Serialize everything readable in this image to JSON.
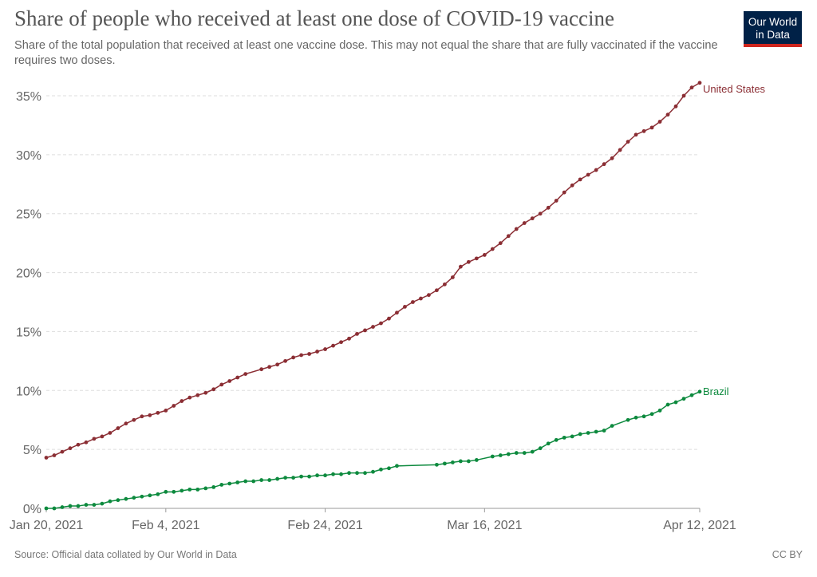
{
  "header": {
    "title": "Share of people who received at least one dose of COVID-19 vaccine",
    "subtitle": "Share of the total population that received at least one vaccine dose. This may not equal the share that are fully vaccinated if the vaccine requires two doses."
  },
  "logo": {
    "line1": "Our World",
    "line2": "in Data"
  },
  "footer": {
    "source": "Source: Official data collated by Our World in Data",
    "license": "CC BY"
  },
  "colors": {
    "us": "#8b2e34",
    "brazil": "#0d8a3e",
    "grid": "#dddddd",
    "axis": "#666666"
  },
  "chart_data": {
    "type": "line",
    "title": "Share of people who received at least one dose of COVID-19 vaccine",
    "x_start": "2021-01-20",
    "x_end": "2021-04-12",
    "xticks": [
      "Jan 20, 2021",
      "Feb 4, 2021",
      "Feb 24, 2021",
      "Mar 16, 2021",
      "Apr 12, 2021"
    ],
    "xtick_dates": [
      "2021-01-20",
      "2021-02-04",
      "2021-02-24",
      "2021-03-16",
      "2021-04-12"
    ],
    "yticks": [
      "0%",
      "5%",
      "10%",
      "15%",
      "20%",
      "25%",
      "30%",
      "35%"
    ],
    "ylim": [
      0,
      35
    ],
    "grid": true,
    "series": [
      {
        "name": "United States",
        "color": "#8b2e34",
        "points": [
          [
            "2021-01-20",
            4.3
          ],
          [
            "2021-01-21",
            4.5
          ],
          [
            "2021-01-22",
            4.8
          ],
          [
            "2021-01-23",
            5.1
          ],
          [
            "2021-01-24",
            5.4
          ],
          [
            "2021-01-25",
            5.6
          ],
          [
            "2021-01-26",
            5.9
          ],
          [
            "2021-01-27",
            6.1
          ],
          [
            "2021-01-28",
            6.4
          ],
          [
            "2021-01-29",
            6.8
          ],
          [
            "2021-01-30",
            7.2
          ],
          [
            "2021-01-31",
            7.5
          ],
          [
            "2021-02-01",
            7.8
          ],
          [
            "2021-02-02",
            7.9
          ],
          [
            "2021-02-03",
            8.1
          ],
          [
            "2021-02-04",
            8.3
          ],
          [
            "2021-02-05",
            8.7
          ],
          [
            "2021-02-06",
            9.1
          ],
          [
            "2021-02-07",
            9.4
          ],
          [
            "2021-02-08",
            9.6
          ],
          [
            "2021-02-09",
            9.8
          ],
          [
            "2021-02-10",
            10.1
          ],
          [
            "2021-02-11",
            10.5
          ],
          [
            "2021-02-12",
            10.8
          ],
          [
            "2021-02-13",
            11.1
          ],
          [
            "2021-02-14",
            11.4
          ],
          [
            "2021-02-16",
            11.8
          ],
          [
            "2021-02-17",
            12.0
          ],
          [
            "2021-02-18",
            12.2
          ],
          [
            "2021-02-19",
            12.5
          ],
          [
            "2021-02-20",
            12.8
          ],
          [
            "2021-02-21",
            13.0
          ],
          [
            "2021-02-22",
            13.1
          ],
          [
            "2021-02-23",
            13.3
          ],
          [
            "2021-02-24",
            13.5
          ],
          [
            "2021-02-25",
            13.8
          ],
          [
            "2021-02-26",
            14.1
          ],
          [
            "2021-02-27",
            14.4
          ],
          [
            "2021-02-28",
            14.8
          ],
          [
            "2021-03-01",
            15.1
          ],
          [
            "2021-03-02",
            15.4
          ],
          [
            "2021-03-03",
            15.7
          ],
          [
            "2021-03-04",
            16.1
          ],
          [
            "2021-03-05",
            16.6
          ],
          [
            "2021-03-06",
            17.1
          ],
          [
            "2021-03-07",
            17.5
          ],
          [
            "2021-03-08",
            17.8
          ],
          [
            "2021-03-09",
            18.1
          ],
          [
            "2021-03-10",
            18.5
          ],
          [
            "2021-03-11",
            19.0
          ],
          [
            "2021-03-12",
            19.6
          ],
          [
            "2021-03-13",
            20.5
          ],
          [
            "2021-03-14",
            20.9
          ],
          [
            "2021-03-15",
            21.2
          ],
          [
            "2021-03-16",
            21.5
          ],
          [
            "2021-03-17",
            22.0
          ],
          [
            "2021-03-18",
            22.5
          ],
          [
            "2021-03-19",
            23.1
          ],
          [
            "2021-03-20",
            23.7
          ],
          [
            "2021-03-21",
            24.2
          ],
          [
            "2021-03-22",
            24.6
          ],
          [
            "2021-03-23",
            25.0
          ],
          [
            "2021-03-24",
            25.5
          ],
          [
            "2021-03-25",
            26.1
          ],
          [
            "2021-03-26",
            26.8
          ],
          [
            "2021-03-27",
            27.4
          ],
          [
            "2021-03-28",
            27.9
          ],
          [
            "2021-03-29",
            28.3
          ],
          [
            "2021-03-30",
            28.7
          ],
          [
            "2021-03-31",
            29.2
          ],
          [
            "2021-04-01",
            29.7
          ],
          [
            "2021-04-02",
            30.4
          ],
          [
            "2021-04-03",
            31.1
          ],
          [
            "2021-04-04",
            31.7
          ],
          [
            "2021-04-05",
            32.0
          ],
          [
            "2021-04-06",
            32.3
          ],
          [
            "2021-04-07",
            32.8
          ],
          [
            "2021-04-08",
            33.4
          ],
          [
            "2021-04-09",
            34.1
          ],
          [
            "2021-04-10",
            35.0
          ],
          [
            "2021-04-11",
            35.7
          ],
          [
            "2021-04-12",
            36.1
          ]
        ]
      },
      {
        "name": "Brazil",
        "color": "#0d8a3e",
        "points": [
          [
            "2021-01-20",
            0.0
          ],
          [
            "2021-01-21",
            0.0
          ],
          [
            "2021-01-22",
            0.1
          ],
          [
            "2021-01-23",
            0.2
          ],
          [
            "2021-01-24",
            0.2
          ],
          [
            "2021-01-25",
            0.3
          ],
          [
            "2021-01-26",
            0.3
          ],
          [
            "2021-01-27",
            0.4
          ],
          [
            "2021-01-28",
            0.6
          ],
          [
            "2021-01-29",
            0.7
          ],
          [
            "2021-01-30",
            0.8
          ],
          [
            "2021-01-31",
            0.9
          ],
          [
            "2021-02-01",
            1.0
          ],
          [
            "2021-02-02",
            1.1
          ],
          [
            "2021-02-03",
            1.2
          ],
          [
            "2021-02-04",
            1.4
          ],
          [
            "2021-02-05",
            1.4
          ],
          [
            "2021-02-06",
            1.5
          ],
          [
            "2021-02-07",
            1.6
          ],
          [
            "2021-02-08",
            1.6
          ],
          [
            "2021-02-09",
            1.7
          ],
          [
            "2021-02-10",
            1.8
          ],
          [
            "2021-02-11",
            2.0
          ],
          [
            "2021-02-12",
            2.1
          ],
          [
            "2021-02-13",
            2.2
          ],
          [
            "2021-02-14",
            2.3
          ],
          [
            "2021-02-15",
            2.3
          ],
          [
            "2021-02-16",
            2.4
          ],
          [
            "2021-02-17",
            2.4
          ],
          [
            "2021-02-18",
            2.5
          ],
          [
            "2021-02-19",
            2.6
          ],
          [
            "2021-02-20",
            2.6
          ],
          [
            "2021-02-21",
            2.7
          ],
          [
            "2021-02-22",
            2.7
          ],
          [
            "2021-02-23",
            2.8
          ],
          [
            "2021-02-24",
            2.8
          ],
          [
            "2021-02-25",
            2.9
          ],
          [
            "2021-02-26",
            2.9
          ],
          [
            "2021-02-27",
            3.0
          ],
          [
            "2021-02-28",
            3.0
          ],
          [
            "2021-03-01",
            3.0
          ],
          [
            "2021-03-02",
            3.1
          ],
          [
            "2021-03-03",
            3.3
          ],
          [
            "2021-03-04",
            3.4
          ],
          [
            "2021-03-05",
            3.6
          ],
          [
            "2021-03-10",
            3.7
          ],
          [
            "2021-03-11",
            3.8
          ],
          [
            "2021-03-12",
            3.9
          ],
          [
            "2021-03-13",
            4.0
          ],
          [
            "2021-03-14",
            4.0
          ],
          [
            "2021-03-15",
            4.1
          ],
          [
            "2021-03-17",
            4.4
          ],
          [
            "2021-03-18",
            4.5
          ],
          [
            "2021-03-19",
            4.6
          ],
          [
            "2021-03-20",
            4.7
          ],
          [
            "2021-03-21",
            4.7
          ],
          [
            "2021-03-22",
            4.8
          ],
          [
            "2021-03-23",
            5.1
          ],
          [
            "2021-03-24",
            5.5
          ],
          [
            "2021-03-25",
            5.8
          ],
          [
            "2021-03-26",
            6.0
          ],
          [
            "2021-03-27",
            6.1
          ],
          [
            "2021-03-28",
            6.3
          ],
          [
            "2021-03-29",
            6.4
          ],
          [
            "2021-03-30",
            6.5
          ],
          [
            "2021-03-31",
            6.6
          ],
          [
            "2021-04-01",
            7.0
          ],
          [
            "2021-04-03",
            7.5
          ],
          [
            "2021-04-04",
            7.7
          ],
          [
            "2021-04-05",
            7.8
          ],
          [
            "2021-04-06",
            8.0
          ],
          [
            "2021-04-07",
            8.3
          ],
          [
            "2021-04-08",
            8.8
          ],
          [
            "2021-04-09",
            9.0
          ],
          [
            "2021-04-10",
            9.3
          ],
          [
            "2021-04-11",
            9.6
          ],
          [
            "2021-04-12",
            9.9
          ]
        ]
      }
    ]
  }
}
